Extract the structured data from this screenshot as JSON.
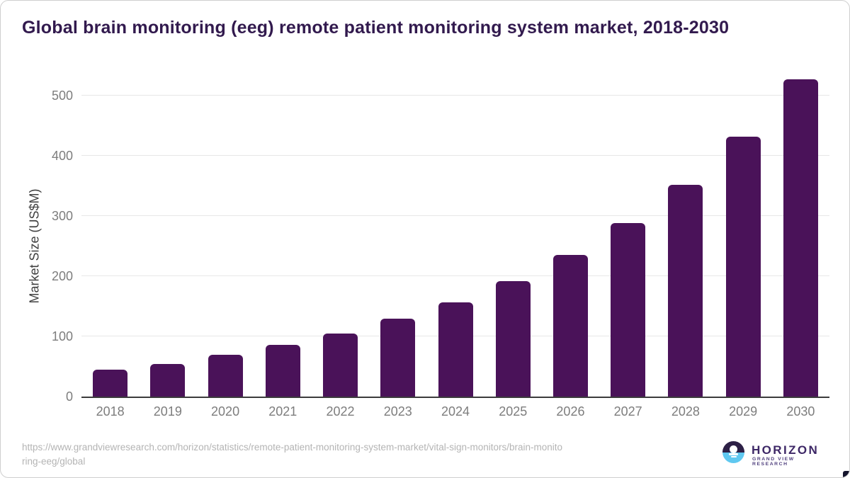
{
  "title": "Global brain monitoring (eeg) remote patient monitoring system market, 2018-2030",
  "chart_data": {
    "type": "bar",
    "categories": [
      "2018",
      "2019",
      "2020",
      "2021",
      "2022",
      "2023",
      "2024",
      "2025",
      "2026",
      "2027",
      "2028",
      "2029",
      "2030"
    ],
    "values": [
      45,
      54,
      70,
      86,
      105,
      130,
      157,
      192,
      235,
      288,
      352,
      432,
      527
    ],
    "title": "Global brain monitoring (eeg) remote patient monitoring system market, 2018-2030",
    "xlabel": "",
    "ylabel": "Market Size (US$M)",
    "ylim": [
      0,
      500
    ],
    "yticks": [
      0,
      100,
      200,
      300,
      400,
      500
    ],
    "grid": "horizontal",
    "legend": "none",
    "bar_color": "#4a1259"
  },
  "footer": {
    "source_url_line1": "https://www.grandviewresearch.com/horizon/statistics/remote-patient-monitoring-system-market/vital-sign-monitors/brain-monito",
    "source_url_line2": "ring-eeg/global"
  },
  "logo": {
    "name": "HORIZON",
    "subtitle": "GRAND VIEW RESEARCH"
  },
  "colors": {
    "bar": "#4a1259",
    "title_text": "#321a4e",
    "axis_line": "#3c3c3c",
    "gridline": "#e7e7e7",
    "tick_text": "#7d7d7d",
    "source_text": "#b4b4b4",
    "logo_dark": "#2d2046",
    "logo_blue": "#5fc8f0"
  }
}
